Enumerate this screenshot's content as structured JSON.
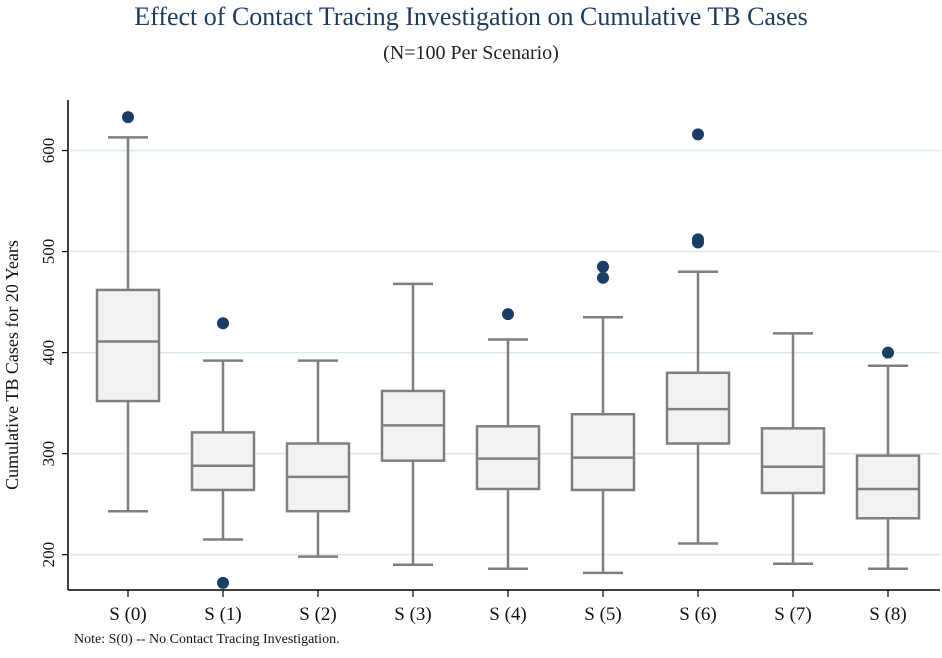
{
  "chart_data": {
    "type": "box",
    "title": "Effect of Contact Tracing Investigation on Cumulative TB Cases",
    "subtitle": "(N=100 Per Scenario)",
    "ylabel": "Cumulative TB Cases for 20 Years",
    "xlabel": "",
    "ylim": [
      165,
      650
    ],
    "yticks": [
      200,
      300,
      400,
      500,
      600
    ],
    "grid": true,
    "categories": [
      "S (0)",
      "S (1)",
      "S (2)",
      "S (3)",
      "S (4)",
      "S (5)",
      "S (6)",
      "S (7)",
      "S (8)"
    ],
    "boxes": [
      {
        "whisker_low": 243,
        "q1": 352,
        "median": 411,
        "q3": 462,
        "whisker_high": 613,
        "outliers": [
          633
        ]
      },
      {
        "whisker_low": 215,
        "q1": 264,
        "median": 288,
        "q3": 321,
        "whisker_high": 392,
        "outliers": [
          429,
          172
        ]
      },
      {
        "whisker_low": 198,
        "q1": 243,
        "median": 277,
        "q3": 310,
        "whisker_high": 392,
        "outliers": []
      },
      {
        "whisker_low": 190,
        "q1": 293,
        "median": 328,
        "q3": 362,
        "whisker_high": 468,
        "outliers": []
      },
      {
        "whisker_low": 186,
        "q1": 265,
        "median": 295,
        "q3": 327,
        "whisker_high": 413,
        "outliers": [
          438
        ]
      },
      {
        "whisker_low": 182,
        "q1": 264,
        "median": 296,
        "q3": 339,
        "whisker_high": 435,
        "outliers": [
          474,
          485
        ]
      },
      {
        "whisker_low": 211,
        "q1": 310,
        "median": 344,
        "q3": 380,
        "whisker_high": 480,
        "outliers": [
          616,
          512,
          509
        ]
      },
      {
        "whisker_low": 191,
        "q1": 261,
        "median": 287,
        "q3": 325,
        "whisker_high": 419,
        "outliers": []
      },
      {
        "whisker_low": 186,
        "q1": 236,
        "median": 265,
        "q3": 298,
        "whisker_high": 387,
        "outliers": [
          400
        ]
      }
    ],
    "colors": {
      "box_fill": "#f2f2f2",
      "box_stroke": "#7f7f7f",
      "outlier": "#1a3d66",
      "grid": "#dbe9ea",
      "title": "#1f3a5f"
    }
  },
  "note": "Note: S(0) -- No Contact Tracing Investigation."
}
